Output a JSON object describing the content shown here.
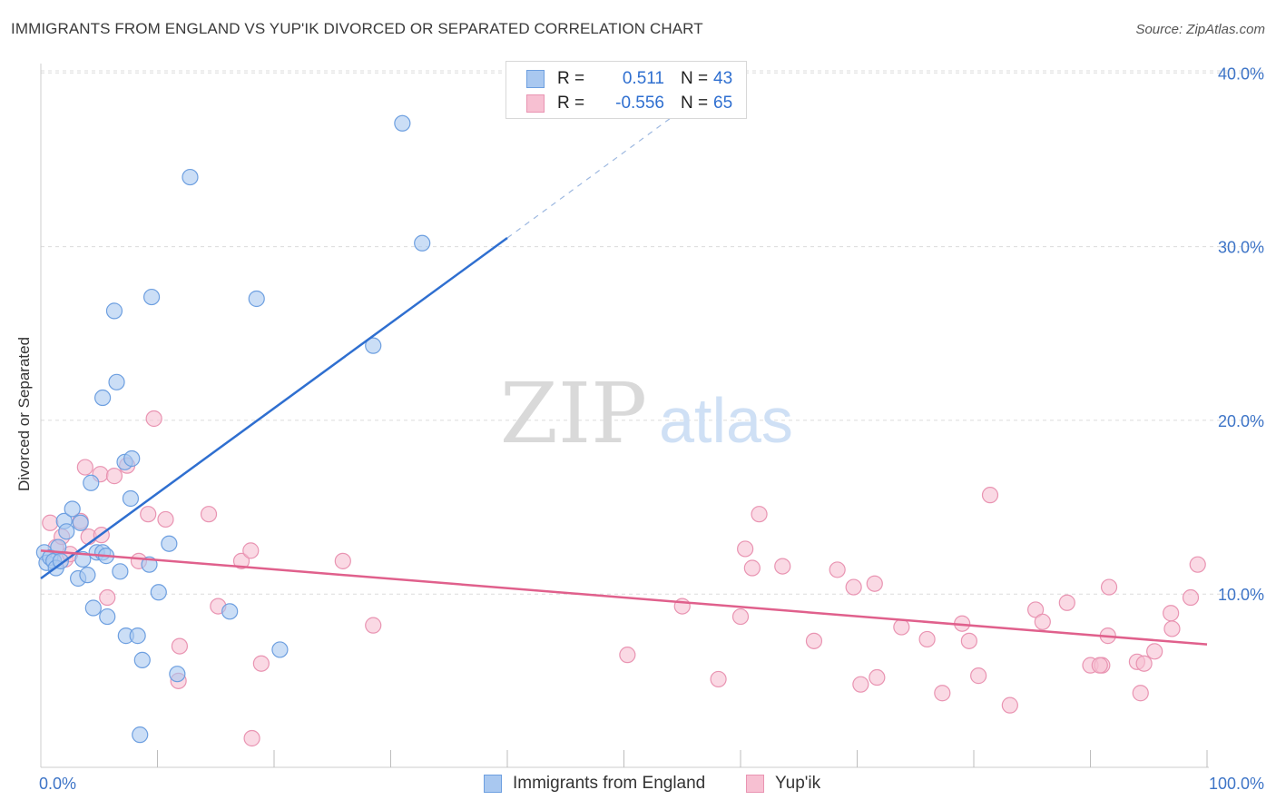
{
  "title": "IMMIGRANTS FROM ENGLAND VS YUP'IK DIVORCED OR SEPARATED CORRELATION CHART",
  "source": "Source: ZipAtlas.com",
  "watermark": {
    "zip": "ZIP",
    "atlas": "atlas"
  },
  "legend_top": [
    {
      "r_label": "R =",
      "r_value": "0.511",
      "n_label": "N =",
      "n_value": "43"
    },
    {
      "r_label": "R =",
      "r_value": "-0.556",
      "n_label": "N =",
      "n_value": "65"
    }
  ],
  "legend_bottom": [
    "Immigrants from England",
    "Yup'ik"
  ],
  "colors": {
    "blue_fill": "#a9c8f0",
    "blue_stroke": "#6d9fe0",
    "blue_line": "#2f6fd0",
    "pink_fill": "#f7c0d2",
    "pink_stroke": "#e994b2",
    "pink_line": "#e0608c",
    "grid": "#dcdcdc",
    "tick_text": "#3d74c7"
  },
  "chart_data": {
    "type": "scatter",
    "title": "IMMIGRANTS FROM ENGLAND VS YUP'IK DIVORCED OR SEPARATED CORRELATION CHART",
    "xlabel": "",
    "ylabel": "Divorced or Separated",
    "xlim": [
      0,
      100
    ],
    "ylim": [
      0,
      40
    ],
    "x_tick_labels": [
      "0.0%",
      "100.0%"
    ],
    "y_ticks": [
      10,
      20,
      30,
      40
    ],
    "y_tick_labels": [
      "10.0%",
      "20.0%",
      "30.0%",
      "40.0%"
    ],
    "grid": true,
    "series": [
      {
        "name": "Immigrants from England",
        "r": 0.511,
        "n": 43,
        "trend": {
          "x": [
            0,
            40
          ],
          "y": [
            10.9,
            30.5
          ],
          "dashed_to": [
            54,
            37.4
          ]
        },
        "points": [
          [
            0.3,
            12.4
          ],
          [
            0.5,
            11.8
          ],
          [
            0.8,
            12.1
          ],
          [
            1.1,
            11.9
          ],
          [
            1.3,
            11.5
          ],
          [
            1.5,
            12.7
          ],
          [
            1.7,
            11.9
          ],
          [
            2.0,
            14.2
          ],
          [
            2.2,
            13.6
          ],
          [
            2.7,
            14.9
          ],
          [
            3.2,
            10.9
          ],
          [
            3.4,
            14.1
          ],
          [
            3.6,
            12.0
          ],
          [
            4.0,
            11.1
          ],
          [
            4.3,
            16.4
          ],
          [
            4.5,
            9.2
          ],
          [
            4.8,
            12.4
          ],
          [
            5.3,
            12.4
          ],
          [
            5.7,
            8.7
          ],
          [
            5.6,
            12.2
          ],
          [
            6.3,
            26.3
          ],
          [
            6.5,
            22.2
          ],
          [
            6.8,
            11.3
          ],
          [
            5.3,
            21.3
          ],
          [
            7.2,
            17.6
          ],
          [
            7.3,
            7.6
          ],
          [
            7.7,
            15.5
          ],
          [
            7.8,
            17.8
          ],
          [
            8.3,
            7.6
          ],
          [
            8.7,
            6.2
          ],
          [
            9.3,
            11.7
          ],
          [
            10.1,
            10.1
          ],
          [
            11.0,
            12.9
          ],
          [
            11.7,
            5.4
          ],
          [
            8.5,
            1.9
          ],
          [
            9.5,
            27.1
          ],
          [
            12.8,
            34.0
          ],
          [
            16.2,
            9.0
          ],
          [
            18.5,
            27.0
          ],
          [
            20.5,
            6.8
          ],
          [
            28.5,
            24.3
          ],
          [
            31.0,
            37.1
          ],
          [
            32.7,
            30.2
          ]
        ]
      },
      {
        "name": "Yup'ik",
        "r": -0.556,
        "n": 65,
        "trend": {
          "x": [
            0,
            100
          ],
          "y": [
            12.5,
            7.1
          ]
        },
        "points": [
          [
            0.8,
            14.1
          ],
          [
            1.3,
            12.7
          ],
          [
            1.8,
            13.3
          ],
          [
            2.1,
            12.0
          ],
          [
            2.5,
            12.3
          ],
          [
            3.4,
            14.2
          ],
          [
            3.8,
            17.3
          ],
          [
            4.1,
            13.3
          ],
          [
            5.2,
            13.4
          ],
          [
            5.1,
            16.9
          ],
          [
            5.7,
            9.8
          ],
          [
            6.3,
            16.8
          ],
          [
            7.4,
            17.4
          ],
          [
            8.4,
            11.9
          ],
          [
            9.2,
            14.6
          ],
          [
            9.7,
            20.1
          ],
          [
            10.7,
            14.3
          ],
          [
            11.8,
            5.0
          ],
          [
            11.9,
            7.0
          ],
          [
            14.4,
            14.6
          ],
          [
            15.2,
            9.3
          ],
          [
            17.2,
            11.9
          ],
          [
            18.0,
            12.5
          ],
          [
            18.1,
            1.7
          ],
          [
            18.9,
            6.0
          ],
          [
            25.9,
            11.9
          ],
          [
            28.5,
            8.2
          ],
          [
            50.3,
            6.5
          ],
          [
            55.0,
            9.3
          ],
          [
            58.1,
            5.1
          ],
          [
            60.0,
            8.7
          ],
          [
            60.4,
            12.6
          ],
          [
            61.0,
            11.5
          ],
          [
            61.6,
            14.6
          ],
          [
            63.6,
            11.6
          ],
          [
            66.3,
            7.3
          ],
          [
            68.3,
            11.4
          ],
          [
            69.7,
            10.4
          ],
          [
            70.3,
            4.8
          ],
          [
            71.5,
            10.6
          ],
          [
            71.7,
            5.2
          ],
          [
            73.8,
            8.1
          ],
          [
            76.0,
            7.4
          ],
          [
            77.3,
            4.3
          ],
          [
            79.0,
            8.3
          ],
          [
            79.6,
            7.3
          ],
          [
            80.4,
            5.3
          ],
          [
            81.4,
            15.7
          ],
          [
            83.1,
            3.6
          ],
          [
            85.3,
            9.1
          ],
          [
            85.9,
            8.4
          ],
          [
            88.0,
            9.5
          ],
          [
            90.0,
            5.9
          ],
          [
            91.0,
            5.9
          ],
          [
            91.5,
            7.6
          ],
          [
            91.6,
            10.4
          ],
          [
            94.0,
            6.1
          ],
          [
            94.3,
            4.3
          ],
          [
            94.6,
            6.0
          ],
          [
            95.5,
            6.7
          ],
          [
            96.9,
            8.9
          ],
          [
            97.0,
            8.0
          ],
          [
            98.6,
            9.8
          ],
          [
            99.2,
            11.7
          ],
          [
            90.8,
            5.9
          ]
        ]
      }
    ]
  }
}
